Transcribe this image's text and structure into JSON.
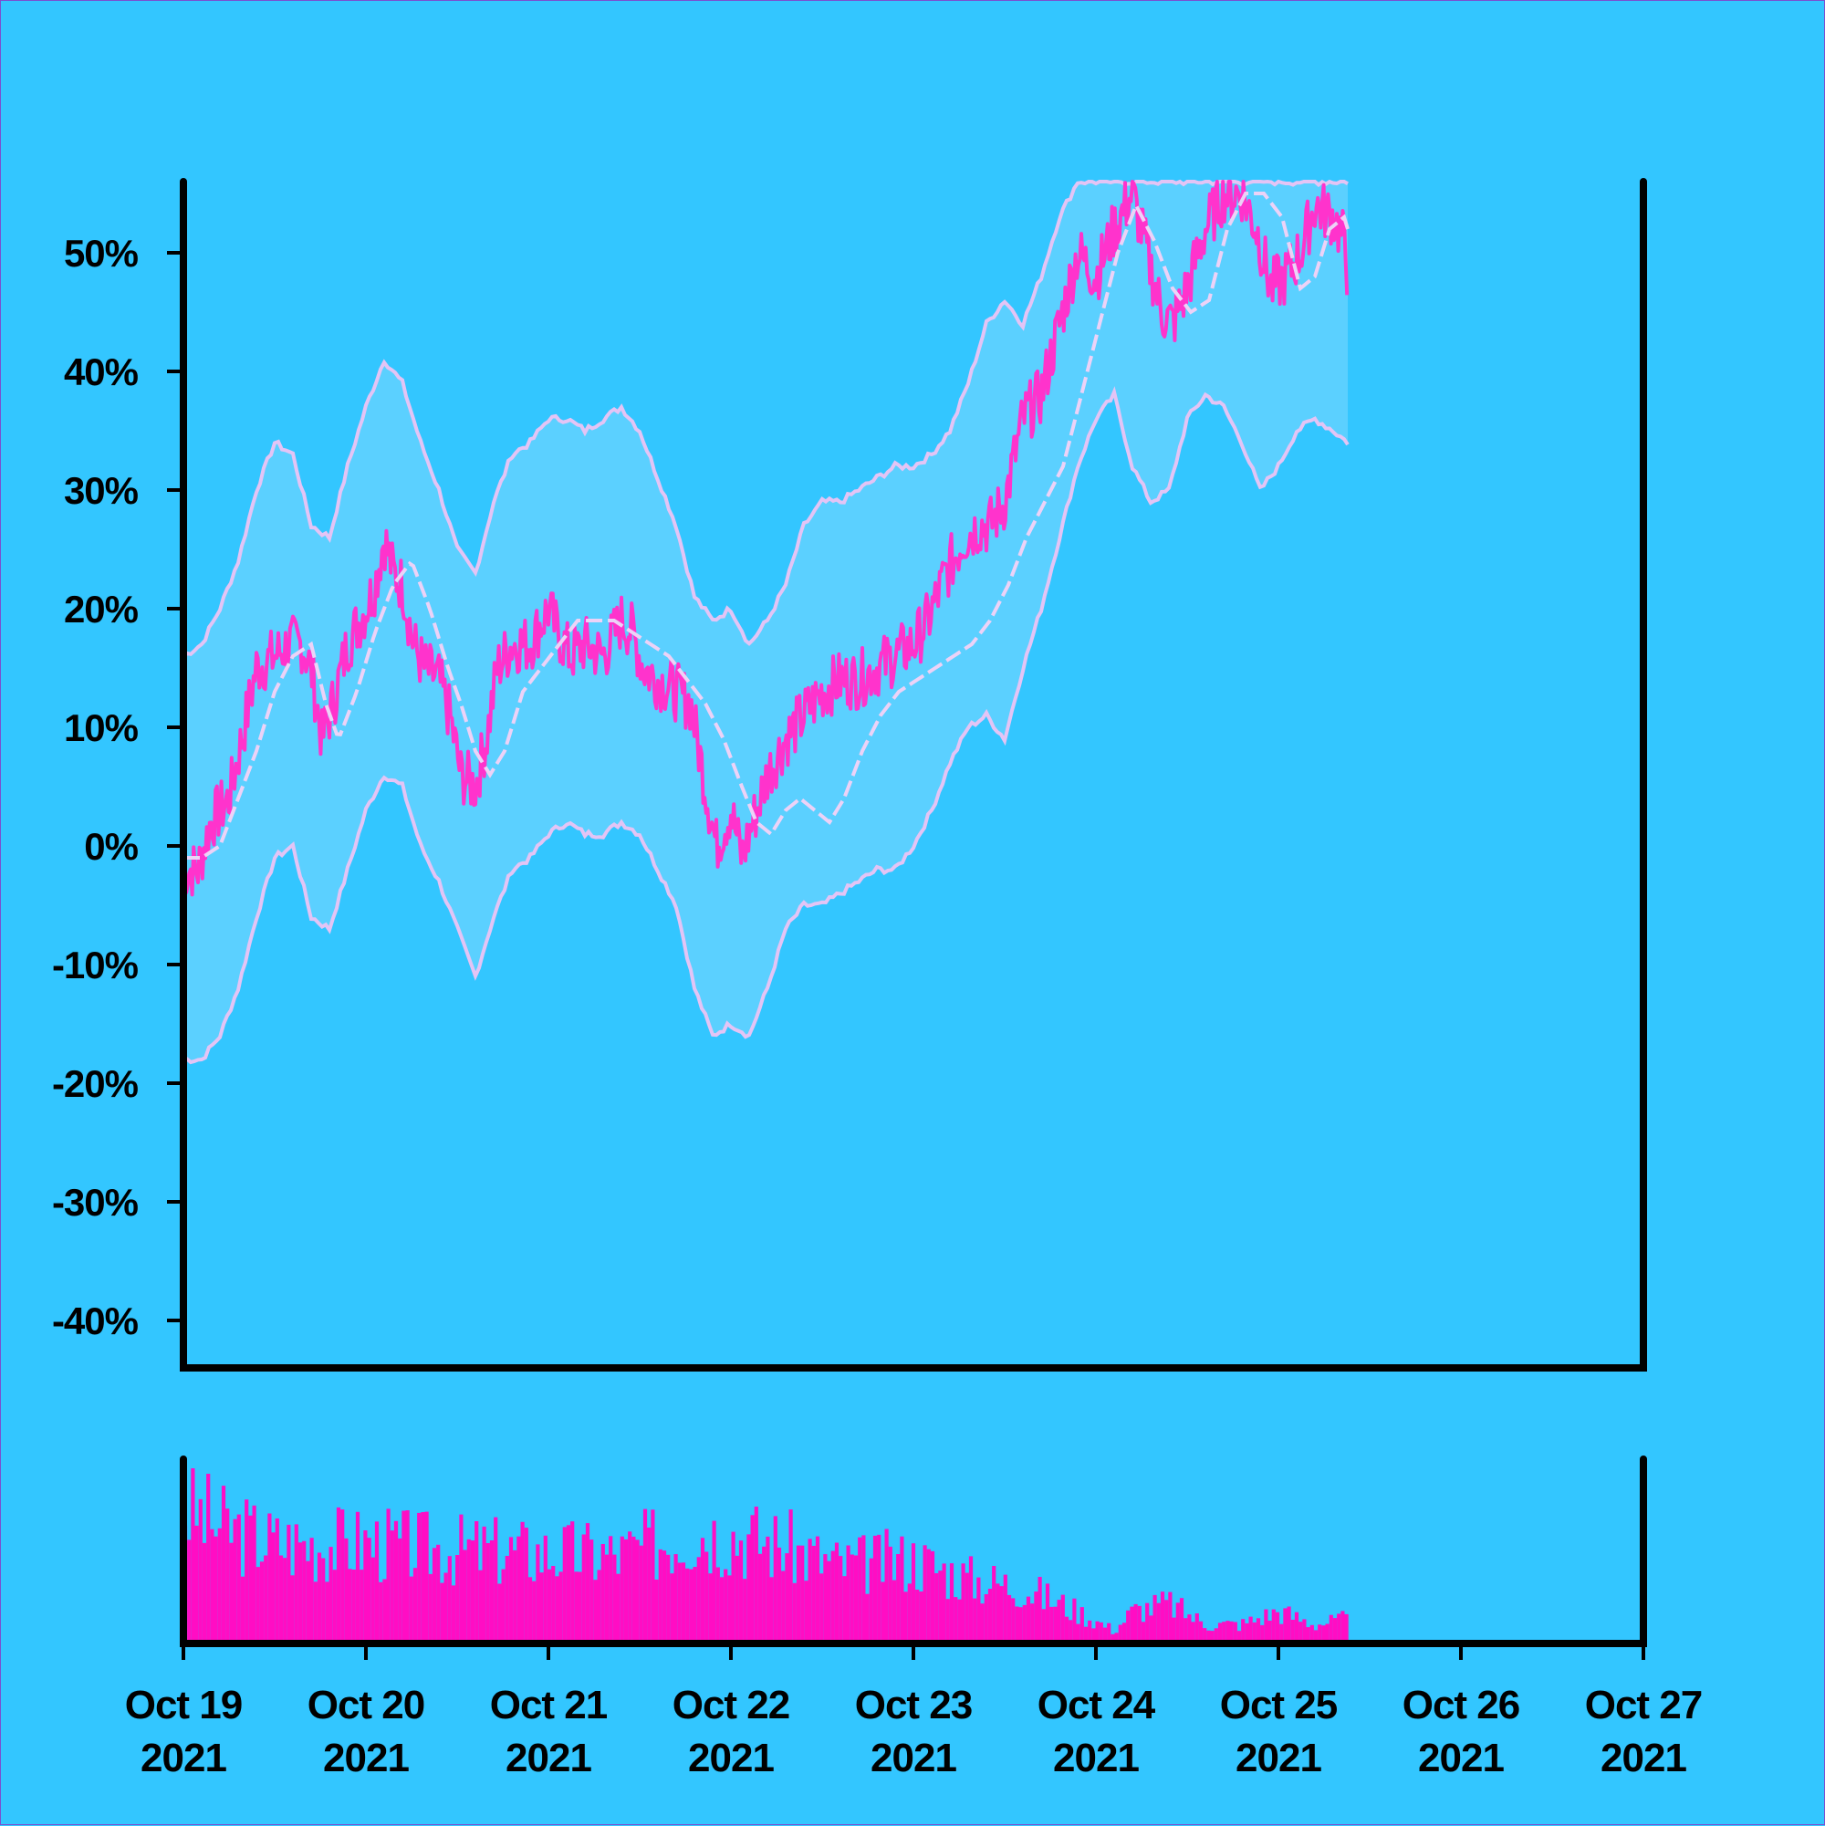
{
  "chart_data": {
    "type": "line",
    "title": "",
    "xlabel": "",
    "ylabel": "",
    "ylim": [
      -44,
      56
    ],
    "y_ticks": [
      "-40%",
      "-30%",
      "-20%",
      "-10%",
      "0%",
      "10%",
      "20%",
      "30%",
      "40%",
      "50%"
    ],
    "x_ticks": [
      {
        "line1": "Oct 19",
        "line2": "2021"
      },
      {
        "line1": "Oct 20",
        "line2": "2021"
      },
      {
        "line1": "Oct 21",
        "line2": "2021"
      },
      {
        "line1": "Oct 22",
        "line2": "2021"
      },
      {
        "line1": "Oct 23",
        "line2": "2021"
      },
      {
        "line1": "Oct 24",
        "line2": "2021"
      },
      {
        "line1": "Oct 25",
        "line2": "2021"
      },
      {
        "line1": "Oct 26",
        "line2": "2021"
      },
      {
        "line1": "Oct 27",
        "line2": "2021"
      }
    ],
    "x_day_range": [
      0,
      8
    ],
    "series": [
      {
        "role": "price",
        "points": [
          [
            0.0,
            -2
          ],
          [
            0.08,
            -2
          ],
          [
            0.15,
            2
          ],
          [
            0.25,
            4
          ],
          [
            0.32,
            9
          ],
          [
            0.4,
            15
          ],
          [
            0.5,
            16
          ],
          [
            0.58,
            17
          ],
          [
            0.65,
            17
          ],
          [
            0.7,
            15
          ],
          [
            0.76,
            9
          ],
          [
            0.82,
            12
          ],
          [
            0.9,
            17
          ],
          [
            1.0,
            20
          ],
          [
            1.05,
            22
          ],
          [
            1.1,
            26
          ],
          [
            1.15,
            23
          ],
          [
            1.2,
            22
          ],
          [
            1.26,
            17
          ],
          [
            1.32,
            15
          ],
          [
            1.4,
            14
          ],
          [
            1.46,
            11
          ],
          [
            1.52,
            6
          ],
          [
            1.6,
            5
          ],
          [
            1.66,
            9
          ],
          [
            1.72,
            15
          ],
          [
            1.8,
            17
          ],
          [
            1.9,
            17
          ],
          [
            2.0,
            20
          ],
          [
            2.05,
            18
          ],
          [
            2.12,
            16
          ],
          [
            2.2,
            17
          ],
          [
            2.3,
            16
          ],
          [
            2.4,
            19
          ],
          [
            2.46,
            18
          ],
          [
            2.52,
            15
          ],
          [
            2.6,
            14
          ],
          [
            2.7,
            13
          ],
          [
            2.78,
            12
          ],
          [
            2.86,
            5
          ],
          [
            2.92,
            0
          ],
          [
            3.0,
            3
          ],
          [
            3.06,
            -1
          ],
          [
            3.12,
            2
          ],
          [
            3.2,
            6
          ],
          [
            3.3,
            9
          ],
          [
            3.4,
            11
          ],
          [
            3.5,
            13
          ],
          [
            3.6,
            14
          ],
          [
            3.7,
            14
          ],
          [
            3.8,
            15
          ],
          [
            3.9,
            16
          ],
          [
            4.0,
            17
          ],
          [
            4.08,
            19
          ],
          [
            4.18,
            23
          ],
          [
            4.28,
            26
          ],
          [
            4.36,
            27
          ],
          [
            4.42,
            27
          ],
          [
            4.5,
            29
          ],
          [
            4.6,
            36
          ],
          [
            4.7,
            38
          ],
          [
            4.8,
            44
          ],
          [
            4.9,
            50
          ],
          [
            5.0,
            48
          ],
          [
            5.1,
            52
          ],
          [
            5.2,
            55
          ],
          [
            5.28,
            50
          ],
          [
            5.36,
            45
          ],
          [
            5.42,
            44
          ],
          [
            5.5,
            47
          ],
          [
            5.6,
            52
          ],
          [
            5.7,
            55
          ],
          [
            5.8,
            55
          ],
          [
            5.88,
            52
          ],
          [
            5.96,
            47
          ],
          [
            6.04,
            48
          ],
          [
            6.12,
            50
          ],
          [
            6.2,
            54
          ],
          [
            6.3,
            53
          ],
          [
            6.36,
            51
          ],
          [
            6.38,
            48
          ]
        ]
      },
      {
        "role": "moving_average",
        "points": [
          [
            0.0,
            -1
          ],
          [
            0.1,
            -1
          ],
          [
            0.2,
            0
          ],
          [
            0.3,
            4
          ],
          [
            0.4,
            8
          ],
          [
            0.5,
            13
          ],
          [
            0.6,
            16
          ],
          [
            0.7,
            17
          ],
          [
            0.78,
            12
          ],
          [
            0.85,
            9
          ],
          [
            0.95,
            13
          ],
          [
            1.05,
            18
          ],
          [
            1.15,
            22
          ],
          [
            1.25,
            24
          ],
          [
            1.35,
            20
          ],
          [
            1.45,
            15
          ],
          [
            1.52,
            12
          ],
          [
            1.6,
            8
          ],
          [
            1.68,
            6
          ],
          [
            1.76,
            8
          ],
          [
            1.86,
            13
          ],
          [
            1.96,
            15
          ],
          [
            2.06,
            17
          ],
          [
            2.16,
            19
          ],
          [
            2.26,
            19
          ],
          [
            2.36,
            19
          ],
          [
            2.46,
            18
          ],
          [
            2.56,
            17
          ],
          [
            2.66,
            16
          ],
          [
            2.76,
            14
          ],
          [
            2.86,
            12
          ],
          [
            2.96,
            9
          ],
          [
            3.06,
            5
          ],
          [
            3.14,
            2
          ],
          [
            3.22,
            1
          ],
          [
            3.3,
            3
          ],
          [
            3.38,
            4
          ],
          [
            3.46,
            3
          ],
          [
            3.54,
            2
          ],
          [
            3.62,
            4
          ],
          [
            3.72,
            8
          ],
          [
            3.82,
            11
          ],
          [
            3.92,
            13
          ],
          [
            4.02,
            14
          ],
          [
            4.12,
            15
          ],
          [
            4.22,
            16
          ],
          [
            4.32,
            17
          ],
          [
            4.42,
            19
          ],
          [
            4.52,
            22
          ],
          [
            4.62,
            26
          ],
          [
            4.72,
            29
          ],
          [
            4.82,
            32
          ],
          [
            4.92,
            38
          ],
          [
            5.02,
            44
          ],
          [
            5.12,
            50
          ],
          [
            5.22,
            54
          ],
          [
            5.32,
            51
          ],
          [
            5.42,
            47
          ],
          [
            5.52,
            45
          ],
          [
            5.62,
            46
          ],
          [
            5.72,
            52
          ],
          [
            5.82,
            55
          ],
          [
            5.92,
            55
          ],
          [
            6.02,
            53
          ],
          [
            6.12,
            47
          ],
          [
            6.2,
            48
          ],
          [
            6.28,
            52
          ],
          [
            6.36,
            53
          ],
          [
            6.38,
            52
          ]
        ]
      },
      {
        "role": "upper_band",
        "points": [
          [
            0.0,
            16
          ],
          [
            0.1,
            17
          ],
          [
            0.2,
            20
          ],
          [
            0.3,
            24
          ],
          [
            0.4,
            30
          ],
          [
            0.5,
            34
          ],
          [
            0.6,
            33
          ],
          [
            0.7,
            27
          ],
          [
            0.8,
            26
          ],
          [
            0.9,
            32
          ],
          [
            1.0,
            37
          ],
          [
            1.1,
            41
          ],
          [
            1.2,
            39
          ],
          [
            1.3,
            34
          ],
          [
            1.4,
            30
          ],
          [
            1.5,
            25
          ],
          [
            1.6,
            23
          ],
          [
            1.7,
            29
          ],
          [
            1.8,
            33
          ],
          [
            1.9,
            34
          ],
          [
            2.0,
            36
          ],
          [
            2.1,
            36
          ],
          [
            2.2,
            35
          ],
          [
            2.3,
            36
          ],
          [
            2.4,
            37
          ],
          [
            2.5,
            35
          ],
          [
            2.6,
            31
          ],
          [
            2.7,
            27
          ],
          [
            2.8,
            21
          ],
          [
            2.9,
            19
          ],
          [
            3.0,
            20
          ],
          [
            3.1,
            17
          ],
          [
            3.2,
            19
          ],
          [
            3.3,
            22
          ],
          [
            3.4,
            27
          ],
          [
            3.5,
            29
          ],
          [
            3.6,
            29
          ],
          [
            3.7,
            30
          ],
          [
            3.8,
            31
          ],
          [
            3.9,
            32
          ],
          [
            4.0,
            32
          ],
          [
            4.1,
            33
          ],
          [
            4.2,
            35
          ],
          [
            4.3,
            39
          ],
          [
            4.4,
            44
          ],
          [
            4.5,
            46
          ],
          [
            4.6,
            44
          ],
          [
            4.7,
            48
          ],
          [
            4.8,
            53
          ],
          [
            4.9,
            56
          ],
          [
            5.0,
            56
          ],
          [
            5.5,
            56
          ],
          [
            6.0,
            56
          ],
          [
            6.38,
            56
          ]
        ]
      },
      {
        "role": "lower_band",
        "points": [
          [
            0.0,
            -18
          ],
          [
            0.1,
            -18
          ],
          [
            0.2,
            -16
          ],
          [
            0.3,
            -12
          ],
          [
            0.4,
            -6
          ],
          [
            0.5,
            -1
          ],
          [
            0.6,
            0
          ],
          [
            0.7,
            -6
          ],
          [
            0.8,
            -7
          ],
          [
            0.9,
            -2
          ],
          [
            1.0,
            3
          ],
          [
            1.1,
            6
          ],
          [
            1.2,
            5
          ],
          [
            1.3,
            0
          ],
          [
            1.4,
            -3
          ],
          [
            1.5,
            -7
          ],
          [
            1.6,
            -11
          ],
          [
            1.7,
            -6
          ],
          [
            1.8,
            -2
          ],
          [
            1.9,
            -1
          ],
          [
            2.0,
            1
          ],
          [
            2.1,
            2
          ],
          [
            2.2,
            1
          ],
          [
            2.3,
            1
          ],
          [
            2.4,
            2
          ],
          [
            2.5,
            1
          ],
          [
            2.6,
            -2
          ],
          [
            2.7,
            -5
          ],
          [
            2.8,
            -12
          ],
          [
            2.9,
            -16
          ],
          [
            3.0,
            -15
          ],
          [
            3.1,
            -16
          ],
          [
            3.2,
            -12
          ],
          [
            3.3,
            -7
          ],
          [
            3.4,
            -5
          ],
          [
            3.5,
            -5
          ],
          [
            3.6,
            -4
          ],
          [
            3.7,
            -3
          ],
          [
            3.8,
            -2
          ],
          [
            3.9,
            -2
          ],
          [
            4.0,
            0
          ],
          [
            4.1,
            3
          ],
          [
            4.2,
            7
          ],
          [
            4.3,
            10
          ],
          [
            4.4,
            11
          ],
          [
            4.5,
            9
          ],
          [
            4.6,
            15
          ],
          [
            4.7,
            20
          ],
          [
            4.8,
            26
          ],
          [
            4.9,
            32
          ],
          [
            5.0,
            36
          ],
          [
            5.1,
            38
          ],
          [
            5.2,
            32
          ],
          [
            5.3,
            29
          ],
          [
            5.4,
            30
          ],
          [
            5.5,
            36
          ],
          [
            5.6,
            38
          ],
          [
            5.7,
            37
          ],
          [
            5.8,
            34
          ],
          [
            5.9,
            30
          ],
          [
            6.0,
            32
          ],
          [
            6.1,
            35
          ],
          [
            6.2,
            36
          ],
          [
            6.3,
            35
          ],
          [
            6.38,
            34
          ]
        ]
      }
    ],
    "volume": {
      "envelope": [
        [
          0.0,
          0.85
        ],
        [
          0.2,
          0.72
        ],
        [
          0.5,
          0.62
        ],
        [
          1.0,
          0.62
        ],
        [
          1.5,
          0.58
        ],
        [
          2.0,
          0.56
        ],
        [
          2.4,
          0.55
        ],
        [
          2.8,
          0.7
        ],
        [
          3.0,
          0.68
        ],
        [
          3.3,
          0.6
        ],
        [
          3.6,
          0.48
        ],
        [
          4.0,
          0.52
        ],
        [
          4.3,
          0.4
        ],
        [
          4.6,
          0.35
        ],
        [
          4.9,
          0.2
        ],
        [
          5.1,
          0.08
        ],
        [
          5.2,
          0.2
        ],
        [
          5.4,
          0.25
        ],
        [
          5.6,
          0.12
        ],
        [
          5.8,
          0.12
        ],
        [
          6.0,
          0.2
        ],
        [
          6.2,
          0.12
        ],
        [
          6.38,
          0.15
        ]
      ]
    },
    "colors": {
      "background": "#33c6ff",
      "band_fill": "#5bd0ff",
      "band_line": "#e3c4f5",
      "price_line": "#ff33cc",
      "ma_line": "#ecd2f7",
      "volume_bar": "#ff0dc4",
      "axis": "#000000"
    },
    "grid": false,
    "legend": "none"
  }
}
